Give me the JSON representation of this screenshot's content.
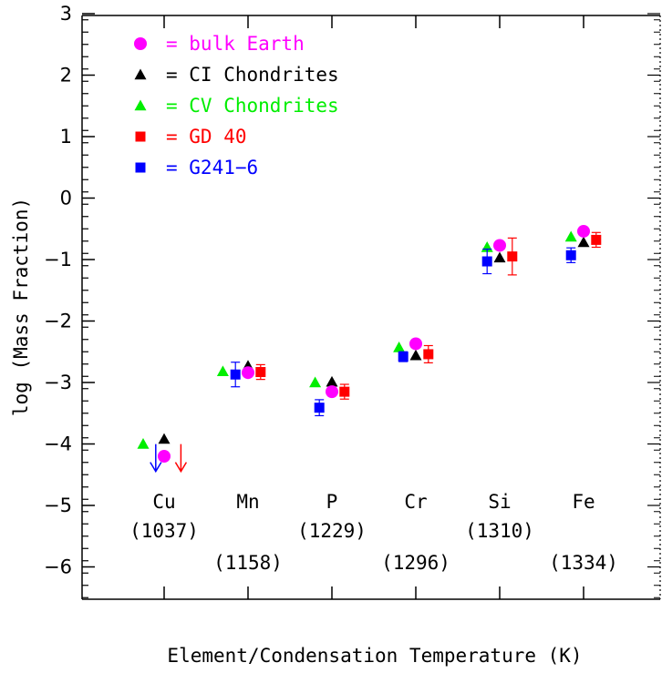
{
  "chart_data": {
    "type": "scatter",
    "xlabel": "Element/Condensation Temperature (K)",
    "ylabel": "log (Mass Fraction)",
    "ylim": [
      -6.5,
      3
    ],
    "xlim": [
      0,
      7
    ],
    "yticks": [
      3,
      2,
      1,
      0,
      -1,
      -2,
      -3,
      -4,
      -5,
      -6
    ],
    "ytick_labels": [
      "3",
      "2",
      "1",
      "0",
      "−1",
      "−2",
      "−3",
      "−4",
      "−5",
      "−6"
    ],
    "grid": false,
    "legend_position": "top-left",
    "elements": [
      {
        "name": "Cu",
        "temp": "(1037)",
        "x": 1,
        "temp_row": 1
      },
      {
        "name": "Mn",
        "temp": "(1158)",
        "x": 2,
        "temp_row": 2
      },
      {
        "name": "P",
        "temp": "(1229)",
        "x": 3,
        "temp_row": 1
      },
      {
        "name": "Cr",
        "temp": "(1296)",
        "x": 4,
        "temp_row": 2
      },
      {
        "name": "Si",
        "temp": "(1310)",
        "x": 5,
        "temp_row": 1
      },
      {
        "name": "Fe",
        "temp": "(1334)",
        "x": 6,
        "temp_row": 2
      }
    ],
    "series": [
      {
        "name": "= bulk Earth",
        "color": "#ff00ff",
        "marker": "circle",
        "points": [
          {
            "x": 1.0,
            "y": -4.2
          },
          {
            "x": 2.0,
            "y": -2.84
          },
          {
            "x": 3.0,
            "y": -3.15
          },
          {
            "x": 4.0,
            "y": -2.37
          },
          {
            "x": 5.0,
            "y": -0.77
          },
          {
            "x": 6.0,
            "y": -0.54
          }
        ]
      },
      {
        "name": "= CI Chondrites",
        "color": "#000000",
        "marker": "triangle",
        "points": [
          {
            "x": 1.0,
            "y": -3.92
          },
          {
            "x": 2.0,
            "y": -2.73
          },
          {
            "x": 3.0,
            "y": -2.99
          },
          {
            "x": 4.0,
            "y": -2.56
          },
          {
            "x": 5.0,
            "y": -0.97
          },
          {
            "x": 6.0,
            "y": -0.72
          }
        ]
      },
      {
        "name": "= CV Chondrites",
        "color": "#00ee00",
        "marker": "triangle",
        "points": [
          {
            "x": 0.75,
            "y": -4.0
          },
          {
            "x": 1.7,
            "y": -2.82
          },
          {
            "x": 2.8,
            "y": -3.0
          },
          {
            "x": 3.8,
            "y": -2.43
          },
          {
            "x": 4.85,
            "y": -0.8
          },
          {
            "x": 5.85,
            "y": -0.63
          }
        ]
      },
      {
        "name": "= GD 40",
        "color": "#ff0000",
        "marker": "square",
        "upper_limit_x": 1.2,
        "upper_limit_y": -4.18,
        "points": [
          {
            "x": 2.15,
            "y": -2.83,
            "err": 0.12
          },
          {
            "x": 3.15,
            "y": -3.15,
            "err": 0.12
          },
          {
            "x": 4.15,
            "y": -2.54,
            "err": 0.14
          },
          {
            "x": 5.15,
            "y": -0.95,
            "err": 0.3
          },
          {
            "x": 6.15,
            "y": -0.68,
            "err": 0.12
          }
        ]
      },
      {
        "name": "= G241−6",
        "color": "#0000ff",
        "marker": "square",
        "upper_limit_x": 0.9,
        "upper_limit_y": -4.18,
        "points": [
          {
            "x": 1.85,
            "y": -2.87,
            "err": 0.2
          },
          {
            "x": 2.85,
            "y": -3.41,
            "err": 0.13
          },
          {
            "x": 3.85,
            "y": -2.58,
            "err": 0.08
          },
          {
            "x": 4.85,
            "y": -1.03,
            "err": 0.2
          },
          {
            "x": 5.85,
            "y": -0.93,
            "err": 0.12
          }
        ]
      }
    ]
  }
}
